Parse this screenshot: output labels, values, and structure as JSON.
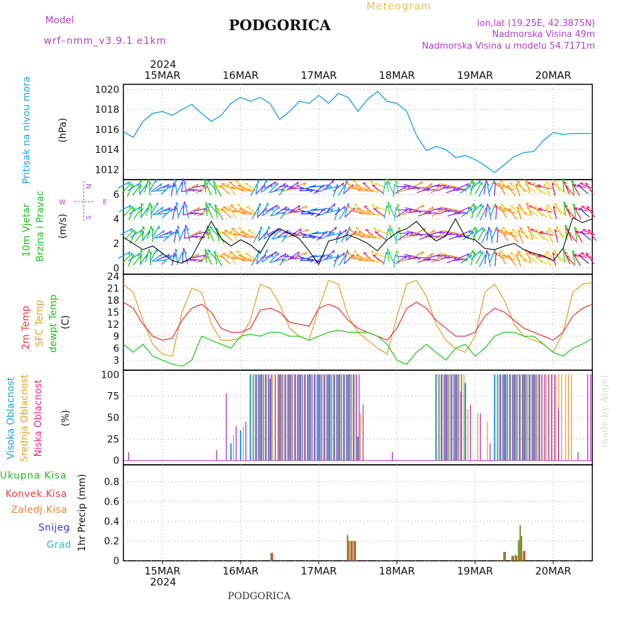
{
  "header": {
    "model_label": "Model",
    "model_name": "wrf–nmm_v3.9.1  e1km",
    "title": "PODGORICA",
    "subtitle": "Meteogram",
    "coords": "lon,lat (19.25E, 42.3875N)",
    "elevation": "Nadmorska Visina 49m",
    "model_elevation": "Nadmorska Visina u modelu 54.7171m",
    "top_year": "2024",
    "footer_title": "PODGORICA",
    "credit": "made by Angel"
  },
  "time_axis": {
    "start": "14MAR 12:00",
    "end": "20MAR 12:00",
    "ticks": [
      "15MAR",
      "16MAR",
      "17MAR",
      "18MAR",
      "19MAR",
      "20MAR"
    ],
    "bottom_year": "2024"
  },
  "colors": {
    "pressure": "#1ea0e0",
    "wind_speed": "#000000",
    "t2m": "#e83a3a",
    "sfc": "#e0a030",
    "dewpt": "#22cc22",
    "high_cloud": "#1ea0e0",
    "mid_cloud": "#e0a030",
    "low_cloud": "#b030c0",
    "total_precip": "#7a9a2a",
    "conv_precip": "#e03030",
    "frozen": "#f08030",
    "snow": "#3333dd",
    "hail": "#22c0c0"
  },
  "panels": {
    "pressure": {
      "label": "Pritisak na nivou mora",
      "unit": "(hPa)",
      "yticks": [
        "1012",
        "1014",
        "1016",
        "1018",
        "1020"
      ]
    },
    "wind": {
      "label1": "10m Vjetar",
      "label2": "Brzina i Pravac",
      "unit": "(m/s)",
      "yticks": [
        "0",
        "2",
        "4",
        "6"
      ],
      "compass": {
        "n": "N",
        "s": "S",
        "e": "E",
        "w": "W"
      }
    },
    "temp": {
      "label1": "2m Temp",
      "label2": "SFC Temp",
      "label3": "dewpt Temp",
      "unit": "(C)",
      "yticks": [
        "3",
        "6",
        "9",
        "12",
        "15",
        "18",
        "21",
        "24"
      ]
    },
    "cloud": {
      "label1": "Visoka Oblacnost",
      "label2": "Srednja Oblacnost",
      "label3": "Niska Oblacnost",
      "unit": "(%)",
      "yticks": [
        "0",
        "25",
        "50",
        "75",
        "100"
      ]
    },
    "precip": {
      "legend": [
        "Ukupna Kisa",
        "Konvek.Kisa",
        "Zaledj.Kisa",
        "Snijeg",
        "Grad"
      ],
      "unit": "1hr Precip (mm)",
      "yticks": [
        "0",
        "0.2",
        "0.4",
        "0.6",
        "0.8"
      ]
    }
  },
  "chart_data": [
    {
      "type": "line",
      "title": "Pritisak na nivou mora",
      "ylabel": "(hPa)",
      "ylim": [
        1011,
        1020.5
      ],
      "x": [
        0,
        3,
        6,
        9,
        12,
        15,
        18,
        21,
        24,
        27,
        30,
        33,
        36,
        39,
        42,
        45,
        48,
        51,
        54,
        57,
        60,
        63,
        66,
        69,
        72,
        75,
        78,
        81,
        84,
        87,
        90,
        93,
        96,
        99,
        102,
        105,
        108,
        111,
        114,
        117,
        120,
        123,
        126,
        129,
        132,
        135,
        138,
        141,
        144
      ],
      "series": [
        {
          "name": "Pritisak na nivou mora",
          "values": [
            1015.8,
            1015.2,
            1016.8,
            1017.6,
            1017.8,
            1017.4,
            1018.0,
            1018.5,
            1017.6,
            1016.8,
            1017.4,
            1018.6,
            1019.2,
            1018.8,
            1019.2,
            1018.6,
            1017.0,
            1017.8,
            1018.8,
            1018.6,
            1019.4,
            1018.6,
            1019.6,
            1019.2,
            1017.8,
            1019.0,
            1019.8,
            1018.8,
            1018.6,
            1017.8,
            1015.4,
            1013.9,
            1014.3,
            1014.0,
            1013.2,
            1013.4,
            1013.0,
            1012.4,
            1011.7,
            1012.5,
            1013.3,
            1013.7,
            1013.8,
            1014.9,
            1015.7,
            1015.5,
            1015.6,
            1015.6,
            1015.6
          ]
        }
      ],
      "grid": true
    },
    {
      "type": "line",
      "title": "10m Vjetar Brzina i Pravac",
      "ylabel": "(m/s)",
      "ylim": [
        -0.5,
        7.2
      ],
      "x": [
        0,
        3,
        6,
        9,
        12,
        15,
        18,
        21,
        24,
        27,
        30,
        33,
        36,
        39,
        42,
        45,
        48,
        51,
        54,
        57,
        60,
        63,
        66,
        69,
        72,
        75,
        78,
        81,
        84,
        87,
        90,
        93,
        96,
        99,
        102,
        105,
        108,
        111,
        114,
        117,
        120,
        123,
        126,
        129,
        132,
        135,
        138,
        141,
        144
      ],
      "series": [
        {
          "name": "10m Vjetar",
          "values": [
            2.5,
            2.0,
            1.5,
            1.8,
            1.2,
            0.6,
            0.4,
            0.9,
            2.4,
            3.8,
            2.4,
            1.8,
            2.3,
            1.9,
            1.2,
            2.6,
            3.2,
            2.8,
            2.4,
            1.4,
            0.3,
            2.2,
            2.4,
            2.7,
            2.4,
            2.0,
            1.4,
            2.3,
            2.9,
            3.2,
            3.8,
            2.9,
            2.2,
            2.6,
            4.0,
            2.5,
            2.3,
            1.6,
            1.5,
            1.8,
            2.0,
            1.5,
            1.2,
            1.0,
            0.6,
            1.6,
            4.1,
            3.7,
            4.0
          ]
        }
      ],
      "grid": true
    },
    {
      "type": "line",
      "title": "2m Temp / SFC Temp / dewpt Temp",
      "ylabel": "(C)",
      "ylim": [
        0.5,
        24.5
      ],
      "x": [
        0,
        3,
        6,
        9,
        12,
        15,
        18,
        21,
        24,
        27,
        30,
        33,
        36,
        39,
        42,
        45,
        48,
        51,
        54,
        57,
        60,
        63,
        66,
        69,
        72,
        75,
        78,
        81,
        84,
        87,
        90,
        93,
        96,
        99,
        102,
        105,
        108,
        111,
        114,
        117,
        120,
        123,
        126,
        129,
        132,
        135,
        138,
        141,
        144
      ],
      "series": [
        {
          "name": "2m Temp",
          "values": [
            17.5,
            16,
            12,
            9,
            8,
            8.5,
            13,
            16,
            17,
            15,
            11,
            10,
            10,
            11,
            15.5,
            16,
            15,
            12.5,
            12,
            11.5,
            16,
            17,
            16,
            13,
            11,
            10,
            9,
            8,
            11,
            16,
            17.5,
            16,
            13,
            11,
            9,
            9,
            10,
            14,
            16,
            15,
            13,
            11,
            10,
            9,
            8,
            10,
            14,
            16,
            17
          ]
        },
        {
          "name": "SFC Temp",
          "values": [
            22,
            20,
            13,
            7,
            4.5,
            4,
            15,
            21,
            20,
            12,
            8,
            8,
            8.5,
            13,
            22,
            21,
            17,
            11,
            9,
            8,
            16,
            23,
            22,
            14,
            10,
            8,
            6,
            4.5,
            14,
            22,
            23,
            19,
            12,
            8,
            6,
            5,
            9,
            20,
            22,
            18,
            12,
            9,
            8,
            7,
            5,
            10,
            20,
            22,
            22.5
          ]
        },
        {
          "name": "dewpt Temp",
          "values": [
            7,
            5,
            7,
            4,
            3,
            2,
            1.5,
            3,
            9,
            8,
            7,
            6,
            9,
            9.5,
            9,
            10,
            10,
            9,
            9,
            8,
            9,
            10,
            10.5,
            10,
            10,
            10,
            9,
            7,
            3,
            2,
            5,
            7,
            5,
            3,
            6,
            7,
            4,
            6,
            9,
            10,
            10,
            9,
            9,
            7,
            5,
            4,
            6,
            7,
            8.5
          ]
        }
      ],
      "grid": true
    },
    {
      "type": "bar",
      "title": "Visoka / Srednja / Niska Oblacnost",
      "ylabel": "(%)",
      "ylim": [
        -5,
        105
      ],
      "x": [
        0,
        3,
        6,
        9,
        12,
        15,
        18,
        21,
        24,
        27,
        30,
        33,
        36,
        39,
        42,
        45,
        48,
        51,
        54,
        57,
        60,
        63,
        66,
        69,
        72,
        75,
        78,
        81,
        84,
        87,
        90,
        93,
        96,
        99,
        102,
        105,
        108,
        111,
        114,
        117,
        120,
        123,
        126,
        129,
        132,
        135,
        138,
        141,
        144
      ],
      "series": [
        {
          "name": "Visoka Oblacnost",
          "values": [
            0,
            0,
            0,
            0,
            0,
            0,
            0,
            0,
            0,
            0,
            0,
            20,
            35,
            100,
            100,
            95,
            100,
            100,
            100,
            100,
            100,
            100,
            100,
            100,
            28,
            0,
            0,
            0,
            0,
            0,
            0,
            0,
            100,
            100,
            100,
            90,
            0,
            0,
            100,
            100,
            100,
            100,
            100,
            0,
            0,
            0,
            0,
            0,
            0
          ]
        },
        {
          "name": "Srednja Oblacnost",
          "values": [
            0,
            0,
            0,
            0,
            0,
            0,
            0,
            0,
            0,
            0,
            0,
            30,
            40,
            100,
            100,
            100,
            100,
            100,
            100,
            100,
            100,
            100,
            100,
            100,
            55,
            0,
            0,
            0,
            0,
            0,
            0,
            0,
            100,
            100,
            100,
            60,
            55,
            45,
            100,
            100,
            100,
            100,
            100,
            100,
            100,
            100,
            0,
            0,
            0
          ]
        },
        {
          "name": "Niska Oblacnost",
          "values": [
            10,
            0,
            0,
            0,
            0,
            0,
            0,
            0,
            0,
            12,
            78,
            40,
            45,
            100,
            100,
            100,
            100,
            100,
            100,
            100,
            100,
            100,
            100,
            100,
            65,
            0,
            0,
            10,
            0,
            0,
            0,
            0,
            100,
            100,
            80,
            65,
            55,
            20,
            100,
            100,
            100,
            100,
            100,
            100,
            60,
            0,
            10,
            100,
            0
          ]
        }
      ],
      "grid": true
    },
    {
      "type": "bar",
      "title": "1hr Precip (mm)",
      "ylabel": "1hr Precip (mm)",
      "ylim": [
        0,
        0.97
      ],
      "x": [
        45.5,
        69.0,
        70.0,
        71.0,
        117.0,
        119.5,
        120.5,
        121.5,
        122.0,
        123.0
      ],
      "series": [
        {
          "name": "Ukupna Kisa",
          "values": [
            0.08,
            0.26,
            0.2,
            0.2,
            0.09,
            0.05,
            0.06,
            0.21,
            0.36,
            0.1
          ]
        },
        {
          "name": "Konvek.Kisa",
          "values": [
            0.08,
            0.2,
            0.2,
            0.2,
            0.09,
            0.05,
            0.05,
            0.17,
            0.25,
            0.1
          ]
        }
      ],
      "grid": true
    }
  ]
}
